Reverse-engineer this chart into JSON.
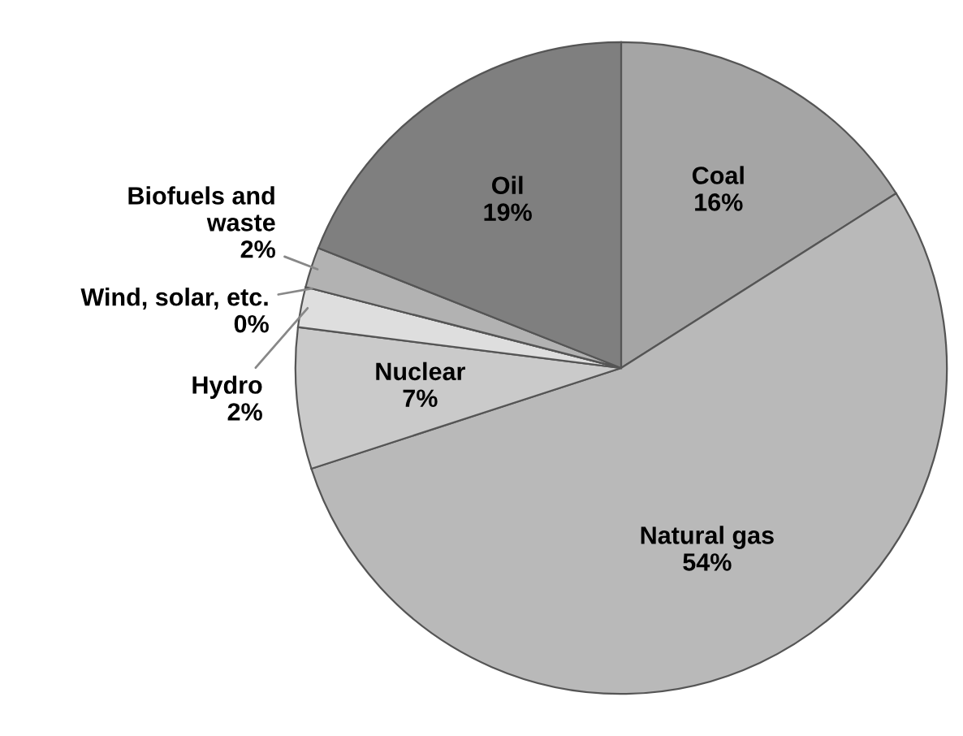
{
  "chart_data": {
    "type": "pie",
    "categories": [
      "Coal",
      "Natural gas",
      "Nuclear",
      "Hydro",
      "Wind, solar, etc.",
      "Biofuels and\nwaste",
      "Oil"
    ],
    "values": [
      16,
      54,
      7,
      2,
      0,
      2,
      19
    ],
    "value_labels": [
      "16%",
      "54%",
      "7%",
      "2%",
      "0%",
      "2%",
      "19%"
    ],
    "colors": [
      "#a5a5a5",
      "#b9b9b9",
      "#cacaca",
      "#dedede",
      "#ededed",
      "#b2b2b2",
      "#7f7f7f"
    ]
  }
}
